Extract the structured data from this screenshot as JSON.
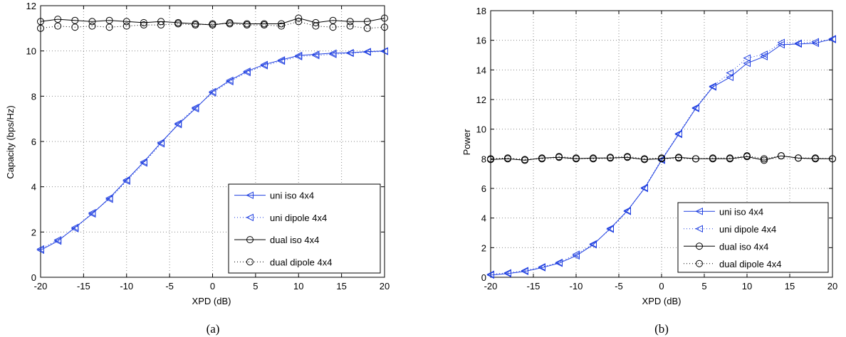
{
  "colors": {
    "uni": "#1f3fe0",
    "dual": "#000000",
    "grid": "#8a8a8a"
  },
  "charts": [
    {
      "type": "line",
      "caption": "(a)",
      "xlabel": "XPD (dB)",
      "ylabel": "Capacity (bps/Hz)",
      "xlim": [
        -20,
        20
      ],
      "ylim": [
        0,
        12
      ],
      "xticks": [
        -20,
        -15,
        -10,
        -5,
        0,
        5,
        10,
        15,
        20
      ],
      "yticks": [
        0,
        2,
        4,
        6,
        8,
        10,
        12
      ],
      "grid": true,
      "legend_position": "bottom-right",
      "x": [
        -20,
        -18,
        -16,
        -14,
        -12,
        -10,
        -8,
        -6,
        -4,
        -2,
        0,
        2,
        4,
        6,
        8,
        10,
        12,
        14,
        16,
        18,
        20
      ],
      "series": [
        {
          "name": "uni iso 4x4",
          "style": "solid",
          "marker": "triangle-left",
          "color_key": "uni",
          "values": [
            1.2,
            1.6,
            2.2,
            2.8,
            3.5,
            4.3,
            5.1,
            5.95,
            6.75,
            7.45,
            8.2,
            8.7,
            9.1,
            9.4,
            9.6,
            9.8,
            9.85,
            9.9,
            9.92,
            9.97,
            10.0
          ]
        },
        {
          "name": "uni dipole 4x4",
          "style": "dotted",
          "marker": "triangle-left",
          "color_key": "uni",
          "values": [
            1.25,
            1.65,
            2.15,
            2.85,
            3.45,
            4.25,
            5.05,
            5.9,
            6.8,
            7.5,
            8.15,
            8.65,
            9.05,
            9.35,
            9.55,
            9.75,
            9.8,
            9.85,
            9.9,
            9.95,
            9.98
          ]
        },
        {
          "name": "dual iso 4x4",
          "style": "solid",
          "marker": "circle",
          "color_key": "dual",
          "values": [
            11.3,
            11.4,
            11.35,
            11.3,
            11.35,
            11.3,
            11.25,
            11.3,
            11.25,
            11.2,
            11.15,
            11.25,
            11.2,
            11.2,
            11.2,
            11.45,
            11.25,
            11.35,
            11.3,
            11.3,
            11.45
          ]
        },
        {
          "name": "dual dipole 4x4",
          "style": "dotted",
          "marker": "circle",
          "color_key": "dual",
          "values": [
            11.0,
            11.1,
            11.05,
            11.1,
            11.05,
            11.1,
            11.15,
            11.15,
            11.2,
            11.15,
            11.2,
            11.2,
            11.15,
            11.15,
            11.1,
            11.3,
            11.1,
            11.05,
            11.1,
            11.0,
            11.05
          ]
        }
      ]
    },
    {
      "type": "line",
      "caption": "(b)",
      "xlabel": "XPD (dB)",
      "ylabel": "Power",
      "xlim": [
        -20,
        20
      ],
      "ylim": [
        0,
        18
      ],
      "xticks": [
        -20,
        -15,
        -10,
        -5,
        0,
        5,
        10,
        15,
        20
      ],
      "yticks": [
        0,
        2,
        4,
        6,
        8,
        10,
        12,
        14,
        16,
        18
      ],
      "grid": true,
      "legend_position": "bottom-right",
      "x": [
        -20,
        -18,
        -16,
        -14,
        -12,
        -10,
        -8,
        -6,
        -4,
        -2,
        0,
        2,
        4,
        6,
        8,
        10,
        12,
        14,
        16,
        18,
        20
      ],
      "series": [
        {
          "name": "uni iso 4x4",
          "style": "solid",
          "marker": "triangle-left",
          "color_key": "uni",
          "values": [
            0.15,
            0.25,
            0.4,
            0.65,
            0.95,
            1.45,
            2.2,
            3.3,
            4.5,
            6.0,
            7.9,
            9.65,
            11.4,
            12.85,
            13.5,
            14.45,
            14.9,
            15.7,
            15.75,
            15.8,
            16.1
          ]
        },
        {
          "name": "uni dipole 4x4",
          "style": "dotted",
          "marker": "triangle-left",
          "color_key": "uni",
          "values": [
            0.2,
            0.3,
            0.45,
            0.7,
            1.0,
            1.55,
            2.25,
            3.25,
            4.45,
            6.05,
            7.95,
            9.7,
            11.45,
            12.9,
            13.8,
            14.8,
            15.05,
            15.85,
            15.8,
            15.9,
            16.05
          ]
        },
        {
          "name": "dual iso 4x4",
          "style": "solid",
          "marker": "circle",
          "color_key": "dual",
          "values": [
            7.95,
            8.0,
            7.9,
            8.05,
            8.1,
            8.0,
            8.05,
            8.05,
            8.1,
            7.95,
            8.0,
            8.1,
            8.0,
            8.0,
            8.0,
            8.15,
            7.9,
            8.2,
            8.05,
            8.0,
            8.0
          ]
        },
        {
          "name": "dual dipole 4x4",
          "style": "dotted",
          "marker": "circle",
          "color_key": "dual",
          "values": [
            8.0,
            8.05,
            7.95,
            8.0,
            8.15,
            8.05,
            8.0,
            8.1,
            8.15,
            8.0,
            8.05,
            8.05,
            8.0,
            8.05,
            8.05,
            8.2,
            8.0,
            8.2,
            8.05,
            8.05,
            8.0
          ]
        }
      ]
    }
  ]
}
